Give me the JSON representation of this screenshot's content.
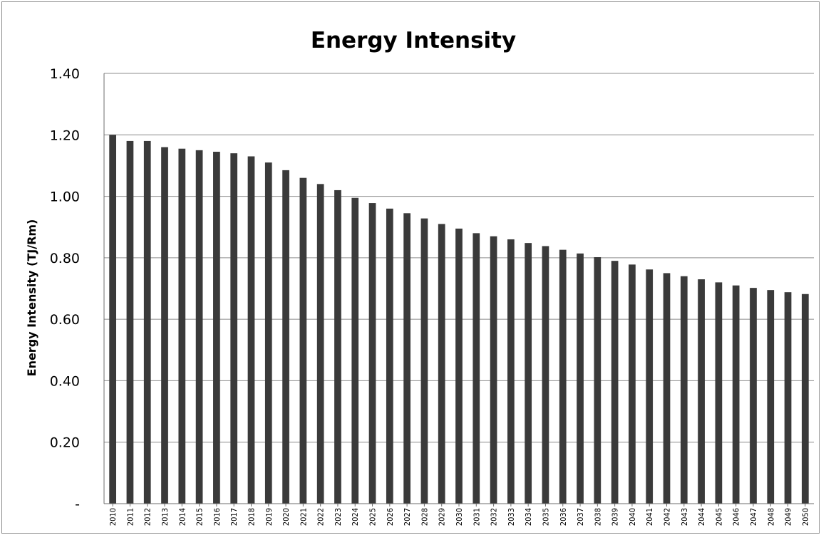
{
  "chart_data": {
    "type": "bar",
    "title": "Energy Intensity",
    "xlabel": "",
    "ylabel": "Energy Intensity (TJ/Rm)",
    "ylim": [
      0,
      1.4
    ],
    "yticks": [
      0,
      0.2,
      0.4,
      0.6,
      0.8,
      1.0,
      1.2,
      1.4
    ],
    "ytick_labels": [
      "-",
      "0.20",
      "0.40",
      "0.60",
      "0.80",
      "1.00",
      "1.20",
      "1.40"
    ],
    "grid": true,
    "legend": "none",
    "bar_color": "#3a3a3a",
    "categories": [
      "2010",
      "2011",
      "2012",
      "2013",
      "2014",
      "2015",
      "2016",
      "2017",
      "2018",
      "2019",
      "2020",
      "2021",
      "2022",
      "2023",
      "2024",
      "2025",
      "2026",
      "2027",
      "2028",
      "2029",
      "2030",
      "2031",
      "2032",
      "2033",
      "2034",
      "2035",
      "2036",
      "2037",
      "2038",
      "2039",
      "2040",
      "2041",
      "2042",
      "2043",
      "2044",
      "2045",
      "2046",
      "2047",
      "2048",
      "2049",
      "2050"
    ],
    "values": [
      1.2,
      1.18,
      1.18,
      1.16,
      1.155,
      1.15,
      1.145,
      1.14,
      1.13,
      1.11,
      1.085,
      1.06,
      1.04,
      1.02,
      0.995,
      0.978,
      0.96,
      0.945,
      0.928,
      0.91,
      0.895,
      0.88,
      0.87,
      0.86,
      0.848,
      0.838,
      0.826,
      0.814,
      0.802,
      0.79,
      0.778,
      0.762,
      0.75,
      0.74,
      0.73,
      0.72,
      0.71,
      0.702,
      0.695,
      0.688,
      0.682
    ]
  }
}
